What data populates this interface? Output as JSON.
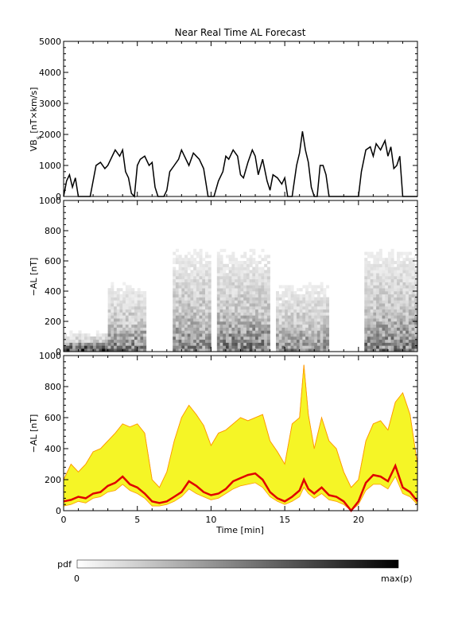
{
  "chart_data": [
    {
      "type": "line",
      "panel": "vbs",
      "title": "Near Real Time AL Forecast",
      "ylabel_main": "VB",
      "ylabel_sub": "s",
      "ylabel_rest": " [nT×km/s]",
      "xlim": [
        0,
        24
      ],
      "ylim": [
        0,
        5000
      ],
      "yticks": [
        "0",
        "1000",
        "2000",
        "3000",
        "4000",
        "5000"
      ],
      "yticks_values": [
        0,
        1000,
        2000,
        3000,
        4000,
        5000
      ],
      "x": [
        0.0,
        0.2,
        0.4,
        0.6,
        0.8,
        1.0,
        1.2,
        1.5,
        1.8,
        2.0,
        2.2,
        2.5,
        2.8,
        3.0,
        3.2,
        3.5,
        3.8,
        4.0,
        4.2,
        4.4,
        4.6,
        4.8,
        5.0,
        5.2,
        5.5,
        5.8,
        6.0,
        6.2,
        6.4,
        6.6,
        6.8,
        7.0,
        7.2,
        7.5,
        7.8,
        8.0,
        8.2,
        8.5,
        8.8,
        9.0,
        9.2,
        9.5,
        9.8,
        10.0,
        10.2,
        10.5,
        10.8,
        11.0,
        11.2,
        11.5,
        11.8,
        12.0,
        12.2,
        12.5,
        12.8,
        13.0,
        13.2,
        13.5,
        13.8,
        14.0,
        14.2,
        14.5,
        14.8,
        15.0,
        15.2,
        15.5,
        15.8,
        16.0,
        16.2,
        16.4,
        16.6,
        16.8,
        17.0,
        17.2,
        17.4,
        17.6,
        17.8,
        18.0,
        18.5,
        19.0,
        19.5,
        20.0,
        20.2,
        20.5,
        20.8,
        21.0,
        21.2,
        21.5,
        21.8,
        22.0,
        22.2,
        22.4,
        22.6,
        22.8,
        23.0,
        23.5,
        24.0
      ],
      "y": [
        0,
        500,
        700,
        300,
        600,
        0,
        0,
        0,
        0,
        500,
        1000,
        1100,
        900,
        1000,
        1200,
        1500,
        1300,
        1500,
        800,
        600,
        100,
        0,
        1000,
        1200,
        1300,
        1000,
        1100,
        300,
        0,
        0,
        0,
        200,
        800,
        1000,
        1200,
        1500,
        1300,
        1000,
        1400,
        1300,
        1200,
        900,
        0,
        0,
        0,
        500,
        800,
        1300,
        1200,
        1500,
        1300,
        700,
        600,
        1100,
        1500,
        1300,
        700,
        1200,
        500,
        200,
        700,
        600,
        400,
        600,
        0,
        0,
        1000,
        1400,
        2100,
        1500,
        1100,
        300,
        0,
        0,
        1000,
        1000,
        700,
        0,
        0,
        0,
        0,
        0,
        800,
        1500,
        1600,
        1300,
        1700,
        1500,
        1800,
        1300,
        1600,
        900,
        1000,
        1300,
        0,
        0,
        0
      ]
    },
    {
      "type": "heatmap",
      "panel": "pdf",
      "ylabel": "−AL [nT]",
      "xlim": [
        0,
        24
      ],
      "ylim": [
        0,
        1000
      ],
      "yticks": [
        "0",
        "200",
        "400",
        "600",
        "800",
        "1000"
      ],
      "yticks_values": [
        0,
        200,
        400,
        600,
        800,
        1000
      ],
      "description_of_cells": "probability density, white = 0, black = max(p)",
      "dense_regions": [
        {
          "x": [
            0,
            3
          ],
          "y": [
            0,
            60
          ],
          "p": 0.95
        },
        {
          "x": [
            3,
            5.5
          ],
          "y": [
            0,
            200
          ],
          "p": 0.6
        },
        {
          "x": [
            7.5,
            10
          ],
          "y": [
            0,
            300
          ],
          "p": 0.55
        },
        {
          "x": [
            10.5,
            14
          ],
          "y": [
            0,
            300
          ],
          "p": 0.6
        },
        {
          "x": [
            14.5,
            18
          ],
          "y": [
            0,
            200
          ],
          "p": 0.55
        },
        {
          "x": [
            20.5,
            24
          ],
          "y": [
            0,
            300
          ],
          "p": 0.6
        }
      ]
    },
    {
      "type": "area",
      "panel": "forecast",
      "ylabel": "−AL [nT]",
      "xlabel": "Time [min]",
      "xlim": [
        0,
        24
      ],
      "ylim": [
        0,
        1000
      ],
      "xticks": [
        "0",
        "5",
        "10",
        "15",
        "20"
      ],
      "xticks_values": [
        0,
        5,
        10,
        15,
        20
      ],
      "yticks": [
        "0",
        "200",
        "400",
        "600",
        "800",
        "1000"
      ],
      "yticks_values": [
        0,
        200,
        400,
        600,
        800,
        1000
      ],
      "colors": {
        "band": "#f5f526",
        "band_edge": "#ff9900",
        "median": "#e00000"
      },
      "x": [
        0,
        0.5,
        1,
        1.5,
        2,
        2.5,
        3,
        3.5,
        4,
        4.5,
        5,
        5.5,
        6,
        6.5,
        7,
        7.5,
        8,
        8.5,
        9,
        9.5,
        10,
        10.5,
        11,
        11.5,
        12,
        12.5,
        13,
        13.5,
        14,
        14.5,
        15,
        15.5,
        16,
        16.3,
        16.6,
        17,
        17.5,
        18,
        18.5,
        19,
        19.5,
        20,
        20.5,
        21,
        21.5,
        22,
        22.5,
        23,
        23.5,
        24
      ],
      "median": [
        60,
        70,
        90,
        80,
        110,
        120,
        160,
        180,
        220,
        170,
        150,
        110,
        60,
        50,
        60,
        90,
        120,
        190,
        160,
        120,
        100,
        110,
        140,
        190,
        210,
        230,
        240,
        200,
        120,
        80,
        60,
        90,
        130,
        200,
        140,
        110,
        150,
        100,
        90,
        60,
        0,
        60,
        180,
        230,
        220,
        190,
        290,
        150,
        120,
        60
      ],
      "upper": [
        200,
        300,
        250,
        300,
        380,
        400,
        450,
        500,
        560,
        540,
        560,
        500,
        200,
        150,
        250,
        450,
        600,
        680,
        620,
        550,
        420,
        500,
        520,
        560,
        600,
        580,
        600,
        620,
        450,
        380,
        300,
        560,
        600,
        940,
        620,
        400,
        600,
        450,
        400,
        250,
        150,
        200,
        450,
        560,
        580,
        520,
        700,
        760,
        620,
        300
      ],
      "lower": [
        30,
        40,
        60,
        50,
        80,
        90,
        120,
        130,
        170,
        130,
        110,
        80,
        30,
        30,
        40,
        60,
        90,
        140,
        110,
        90,
        70,
        80,
        110,
        140,
        160,
        170,
        180,
        150,
        90,
        60,
        40,
        60,
        90,
        150,
        110,
        80,
        110,
        70,
        60,
        40,
        0,
        40,
        130,
        170,
        170,
        140,
        220,
        110,
        90,
        40
      ]
    }
  ],
  "colorbar": {
    "label": "pdf",
    "min_label": "0",
    "max_label": "max(p)"
  }
}
